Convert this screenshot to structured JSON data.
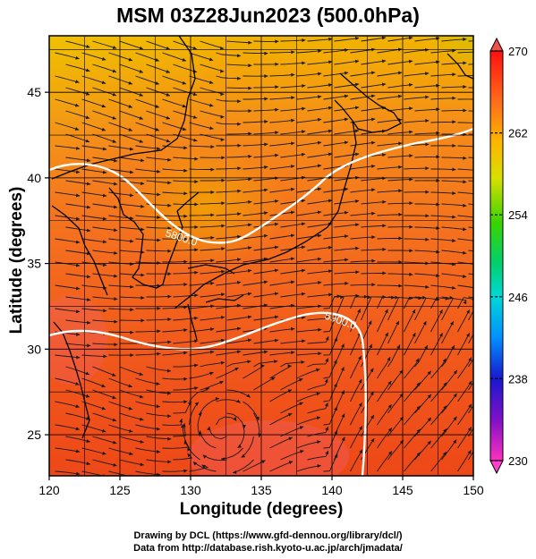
{
  "title": "MSM 03Z28Jun2023 (500.0hPa)",
  "x_axis": {
    "label": "Longitude (degrees)",
    "range": [
      120,
      150
    ],
    "ticks": [
      "120",
      "125",
      "130",
      "135",
      "140",
      "145",
      "150"
    ]
  },
  "y_axis": {
    "label": "Latitude  (degrees)",
    "range": [
      22.6,
      48.3
    ],
    "ticks": [
      "25",
      "30",
      "35",
      "40",
      "45"
    ]
  },
  "colorbar": {
    "range": [
      230,
      270
    ],
    "ticks": [
      "270",
      "262",
      "254",
      "246",
      "238",
      "230"
    ],
    "colors": [
      "#ff1010",
      "#ff7a1a",
      "#ffd400",
      "#7bdc00",
      "#00c83a",
      "#00d8c8",
      "#0096ff",
      "#1010c8",
      "#c000c8",
      "#ff30c0"
    ]
  },
  "contours": [
    {
      "label": "5800.0"
    },
    {
      "label": "5900.0"
    }
  ],
  "credits": {
    "line1": "Drawing by DCL (https://www.gfd-dennou.org/library/dcl/)",
    "line2": "Data from http://database.rish.kyoto-u.ac.jp/arch/jmadata/"
  }
}
